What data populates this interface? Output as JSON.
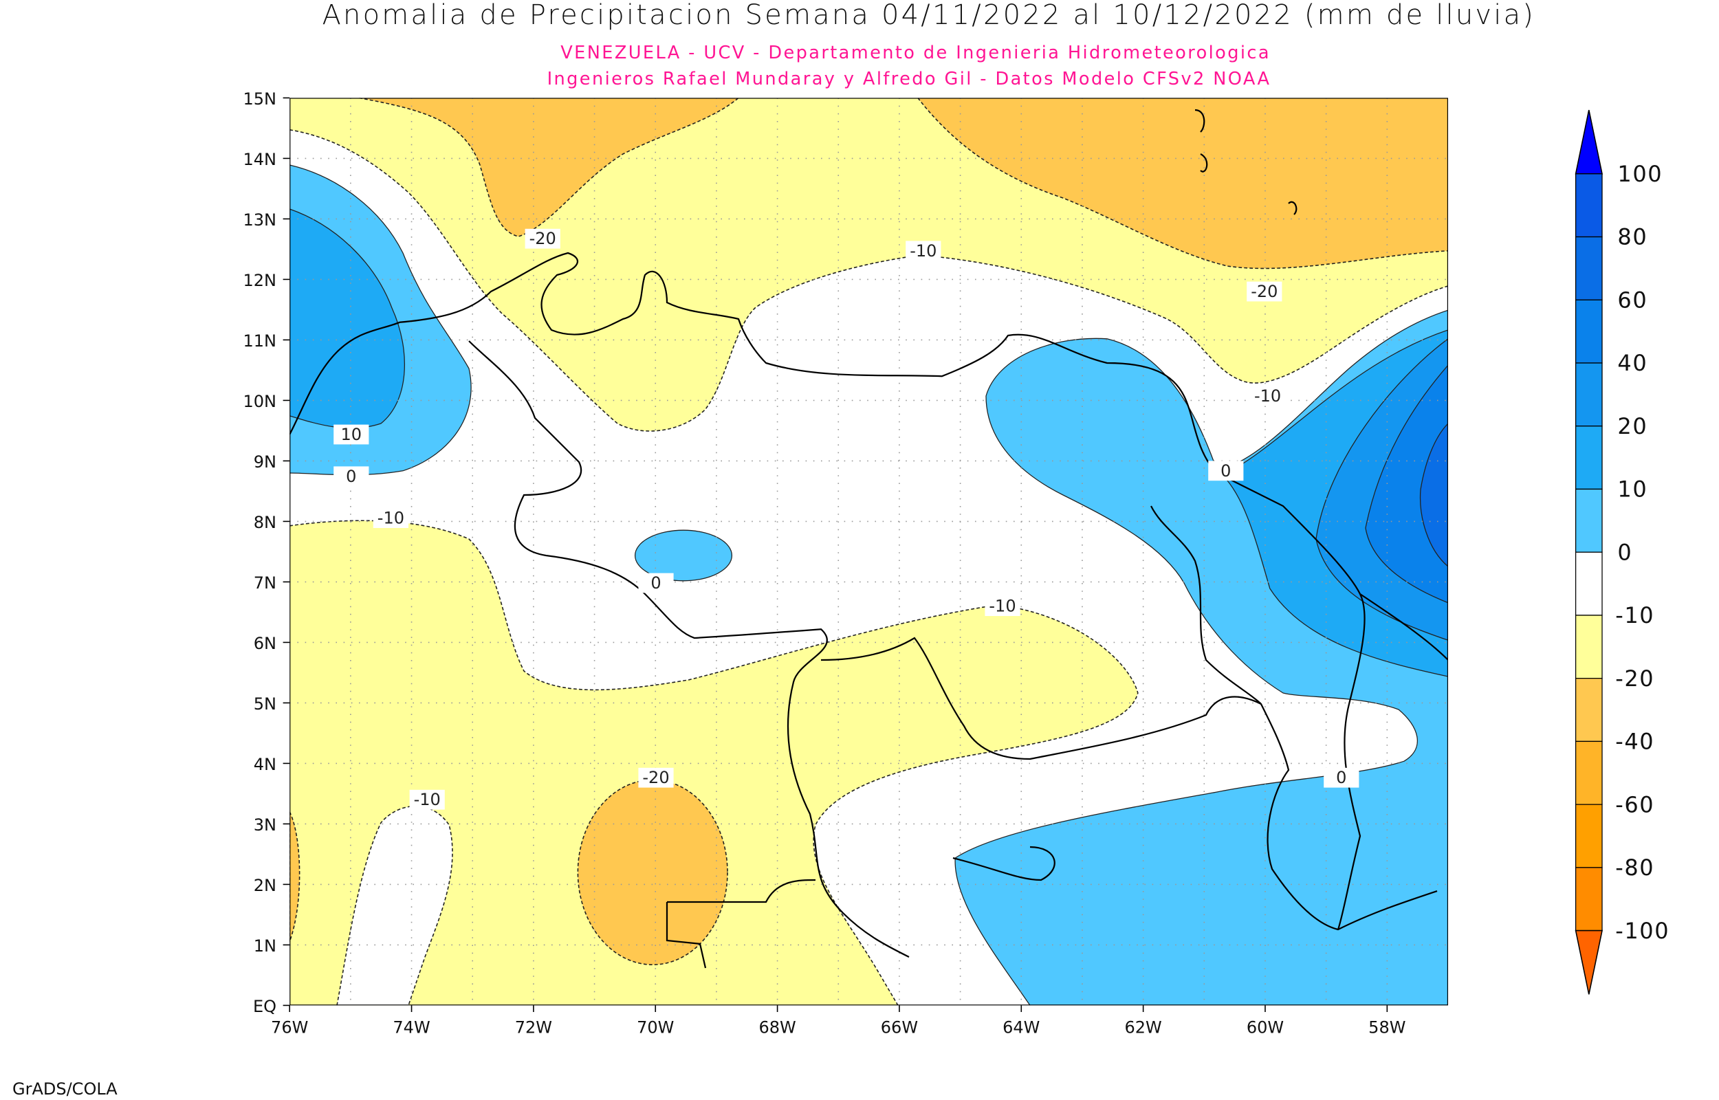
{
  "title": "Anomalia de Precipitacion Semana 04/11/2022 al 10/12/2022 (mm de lluvia)",
  "subtitle_1": "VENEZUELA - UCV - Departamento de Ingenieria Hidrometeorologica",
  "subtitle_2": "Ingenieros Rafael Mundaray y Alfredo Gil - Datos Modelo CFSv2 NOAA",
  "footer": "GrADS/COLA",
  "map": {
    "lon_range": [
      -76,
      -57
    ],
    "lat_range": [
      0,
      15
    ],
    "lat_ticks": [
      "15N",
      "14N",
      "13N",
      "12N",
      "11N",
      "10N",
      "9N",
      "8N",
      "7N",
      "6N",
      "5N",
      "4N",
      "3N",
      "2N",
      "1N",
      "EQ"
    ],
    "lon_ticks": [
      "76W",
      "74W",
      "72W",
      "70W",
      "68W",
      "66W",
      "64W",
      "62W",
      "60W",
      "58W"
    ],
    "contour_labels": [
      "-20",
      "-10",
      "-20",
      "-10",
      "10",
      "0",
      "-10",
      "0",
      "-10",
      "0",
      "-20",
      "-10",
      "0"
    ]
  },
  "colorbar": {
    "levels": [
      "100",
      "80",
      "60",
      "40",
      "20",
      "10",
      "0",
      "-10",
      "-20",
      "-40",
      "-60",
      "-80",
      "-100"
    ],
    "colors": [
      "#0000ff",
      "#0a5ae6",
      "#0a6ee6",
      "#0a82eb",
      "#1496f0",
      "#1eaaf5",
      "#50c8ff",
      "#ffffff",
      "#ffff9a",
      "#ffc850",
      "#ffb428",
      "#ffa000",
      "#ff8c00",
      "#ff6400"
    ]
  },
  "colors": {
    "yellow": "#ffff9a",
    "orange": "#ffc850",
    "blue0": "#50c8ff",
    "blue10": "#1eaaf5",
    "blue20": "#1496f0",
    "blue40": "#0a82eb",
    "blue60": "#0a6ee6"
  }
}
